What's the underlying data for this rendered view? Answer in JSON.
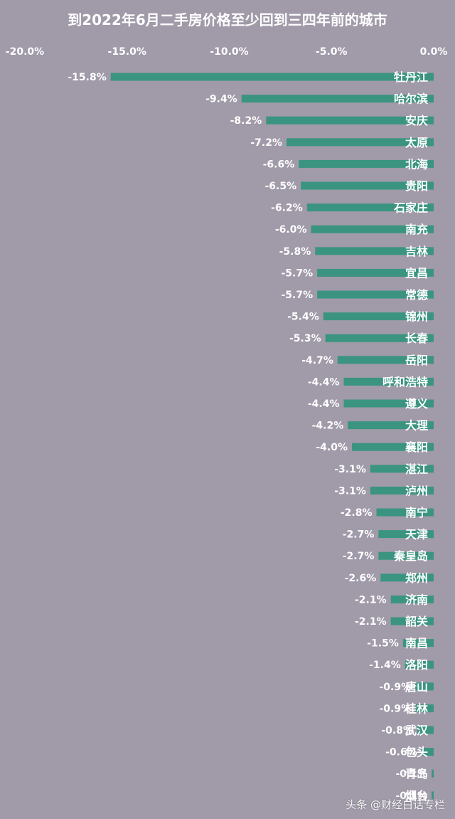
{
  "chart_data": {
    "type": "bar",
    "orientation": "horizontal",
    "title": "到2022年6月二手房价格至少回到三四年前的城市",
    "xlim": [
      -0.2,
      0.0
    ],
    "ticks": [
      -0.2,
      -0.15,
      -0.1,
      -0.05,
      0.0
    ],
    "tick_labels": [
      "-20.0%",
      "-15.0%",
      "-10.0%",
      "-5.0%",
      "0.0%"
    ],
    "grid": false,
    "legend": "none",
    "categories": [
      "牡丹江",
      "哈尔滨",
      "安庆",
      "太原",
      "北海",
      "贵阳",
      "石家庄",
      "南充",
      "吉林",
      "宜昌",
      "常德",
      "锦州",
      "长春",
      "岳阳",
      "呼和浩特",
      "遵义",
      "大理",
      "襄阳",
      "湛江",
      "泸州",
      "南宁",
      "天津",
      "秦皇岛",
      "郑州",
      "济南",
      "韶关",
      "南昌",
      "洛阳",
      "唐山",
      "桂林",
      "武汉",
      "包头",
      "青岛",
      "烟台"
    ],
    "values": [
      -0.158,
      -0.094,
      -0.082,
      -0.072,
      -0.066,
      -0.065,
      -0.062,
      -0.06,
      -0.058,
      -0.057,
      -0.057,
      -0.054,
      -0.053,
      -0.047,
      -0.044,
      -0.044,
      -0.042,
      -0.04,
      -0.031,
      -0.031,
      -0.028,
      -0.027,
      -0.027,
      -0.026,
      -0.021,
      -0.021,
      -0.015,
      -0.014,
      -0.009,
      -0.009,
      -0.008,
      -0.006,
      -0.001,
      -0.001
    ],
    "value_labels": [
      "-15.8%",
      "-9.4%",
      "-8.2%",
      "-7.2%",
      "-6.6%",
      "-6.5%",
      "-6.2%",
      "-6.0%",
      "-5.8%",
      "-5.7%",
      "-5.7%",
      "-5.4%",
      "-5.3%",
      "-4.7%",
      "-4.4%",
      "-4.4%",
      "-4.2%",
      "-4.0%",
      "-3.1%",
      "-3.1%",
      "-2.8%",
      "-2.7%",
      "-2.7%",
      "-2.6%",
      "-2.1%",
      "-2.1%",
      "-1.5%",
      "-1.4%",
      "-0.9%",
      "-0.9%",
      "-0.8%",
      "-0.6%",
      "-0.1%",
      "-0.1%"
    ],
    "colors": {
      "background": "#a09aa9",
      "bar": "#3a9480",
      "text": "#ffffff"
    }
  },
  "watermark": "头条 @财经白话专栏"
}
